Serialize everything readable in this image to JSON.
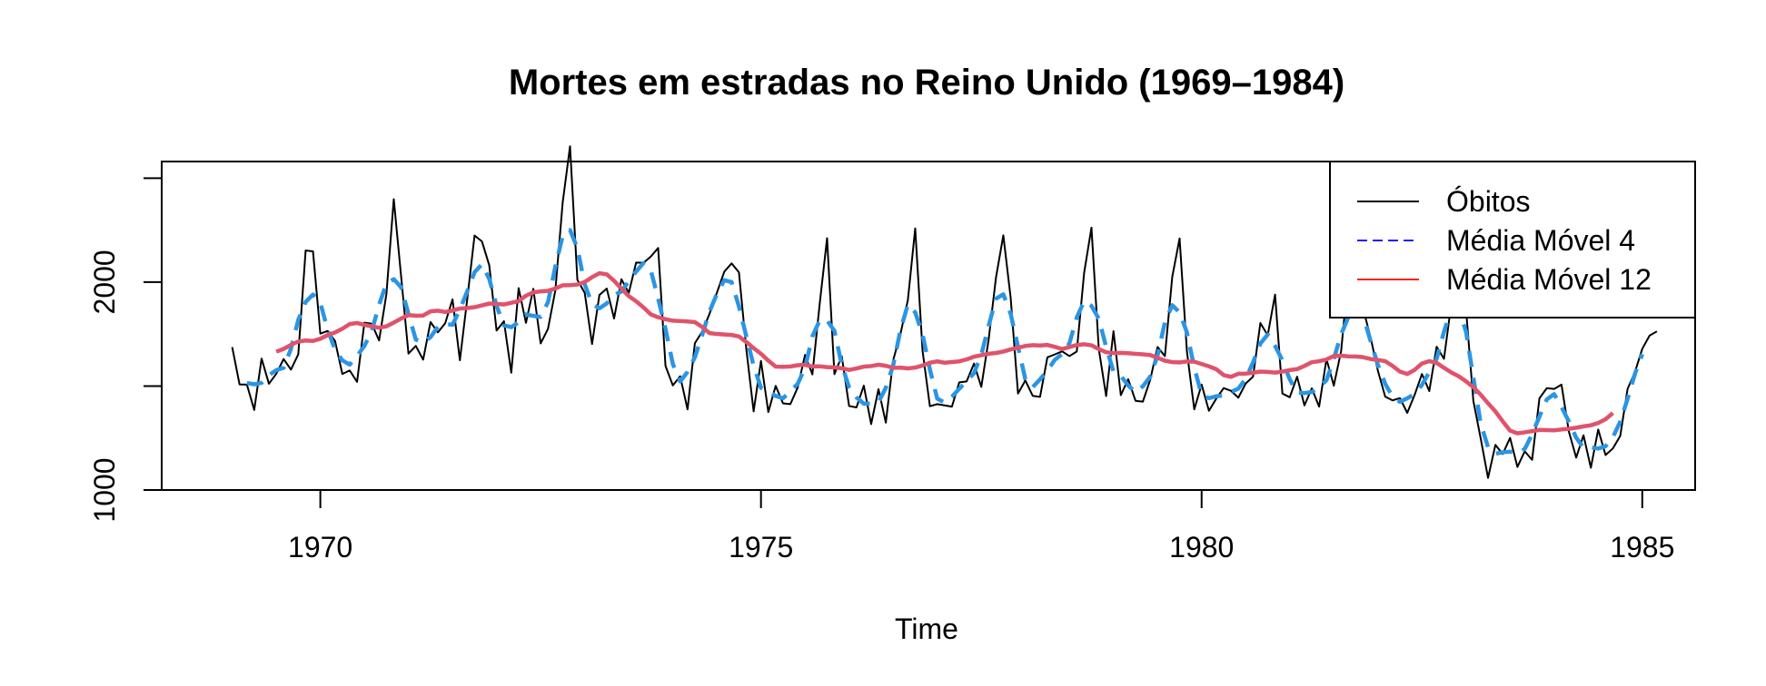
{
  "chart_data": {
    "type": "line",
    "title": "Mortes em estradas no Reino Unido (1969–1984)",
    "xlabel": "Time",
    "ylabel": "",
    "xlim": [
      1968.2,
      1985.6
    ],
    "ylim": [
      1000,
      2580
    ],
    "x_ticks": [
      1970,
      1975,
      1980,
      1985
    ],
    "x_tick_labels": [
      "1970",
      "1975",
      "1980",
      "1985"
    ],
    "y_ticks": [
      1000,
      1500,
      2000,
      2500
    ],
    "y_tick_labels": [
      "1000",
      "",
      "2000",
      ""
    ],
    "legend_position": "top-right",
    "frequency": 12,
    "start": 1969,
    "series": [
      {
        "name": "Óbitos",
        "legend_label": "Óbitos",
        "color": "#000000",
        "line": "solid",
        "values": [
          1687,
          1508,
          1507,
          1385,
          1632,
          1511,
          1559,
          1630,
          1579,
          1653,
          2152,
          2148,
          1752,
          1765,
          1717,
          1558,
          1575,
          1520,
          1805,
          1800,
          1719,
          1943,
          2399,
          2027,
          1656,
          1693,
          1627,
          1808,
          1758,
          1802,
          1917,
          1624,
          1917,
          2224,
          2196,
          2081,
          1767,
          1812,
          1564,
          1971,
          1804,
          1968,
          1705,
          1775,
          1960,
          2383,
          2653,
          2011,
          1948,
          1702,
          1938,
          1969,
          1825,
          2014,
          1948,
          2094,
          2093,
          2123,
          2164,
          1597,
          1503,
          1547,
          1388,
          1706,
          1762,
          1848,
          1949,
          2050,
          2090,
          2047,
          1679,
          1378,
          1621,
          1375,
          1501,
          1417,
          1413,
          1493,
          1650,
          1556,
          1897,
          2211,
          1557,
          1643,
          1404,
          1397,
          1502,
          1317,
          1485,
          1324,
          1624,
          1752,
          1913,
          2258,
          1670,
          1403,
          1413,
          1407,
          1401,
          1518,
          1522,
          1608,
          1496,
          1724,
          2022,
          2225,
          1924,
          1464,
          1527,
          1453,
          1448,
          1638,
          1652,
          1667,
          1644,
          1666,
          2044,
          2262,
          1678,
          1452,
          1764,
          1456,
          1533,
          1429,
          1425,
          1530,
          1688,
          1644,
          2025,
          2210,
          1666,
          1388,
          1507,
          1381,
          1440,
          1490,
          1477,
          1444,
          1512,
          1545,
          1803,
          1744,
          1940,
          1464,
          1446,
          1545,
          1407,
          1489,
          1401,
          1630,
          1502,
          1669,
          2044,
          1932,
          1871,
          1735,
          1574,
          1449,
          1431,
          1442,
          1371,
          1457,
          1558,
          1476,
          1689,
          1631,
          1897,
          2178,
          1870,
          1429,
          1248,
          1058,
          1217,
          1173,
          1251,
          1111,
          1186,
          1145,
          1441,
          1490,
          1486,
          1507,
          1282,
          1156,
          1263,
          1107,
          1291,
          1168,
          1200,
          1260,
          1486,
          1567,
          1679,
          1743,
          1763
        ]
      },
      {
        "name": "Média Móvel 4",
        "legend_label": "Média Móvel 4",
        "color": "#2b95e4",
        "line": "dashed"
      },
      {
        "name": "Média Móvel 12",
        "legend_label": "Média Móvel 12",
        "color": "#df536b",
        "line": "solid"
      }
    ],
    "legend": [
      {
        "label": "Óbitos",
        "color": "#000000",
        "line": "solid"
      },
      {
        "label": "Média Móvel 4",
        "color": "#1f1fff",
        "line": "dashed"
      },
      {
        "label": "Média Móvel 12",
        "color": "#ff1f1f",
        "line": "solid"
      }
    ]
  }
}
